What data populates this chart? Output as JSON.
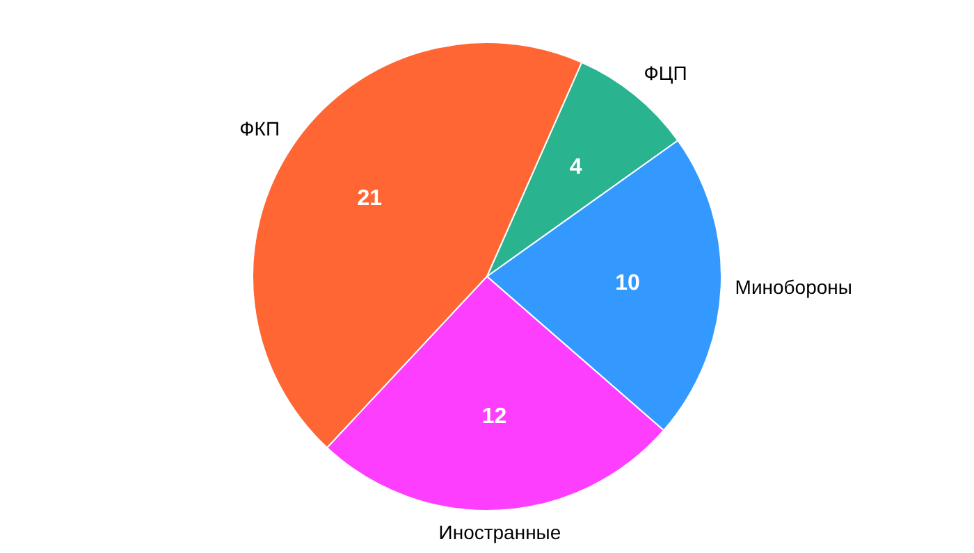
{
  "chart_data": {
    "type": "pie",
    "categories": [
      "ФКП",
      "ФЦП",
      "Минобороны",
      "Иностранные"
    ],
    "values": [
      21,
      4,
      10,
      12
    ],
    "colors": [
      "#ff6633",
      "#2ab38f",
      "#3399ff",
      "#fe3efe"
    ],
    "data_labels": true,
    "legend": false
  }
}
